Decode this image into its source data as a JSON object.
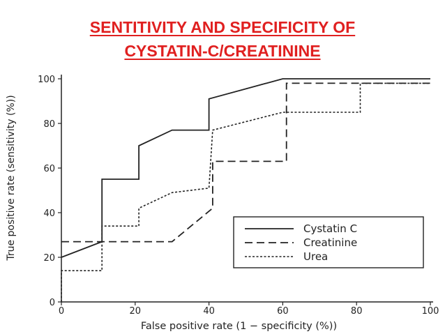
{
  "slide": {
    "title_line1": "SENTITIVITY AND SPECIFICITY OF",
    "title_line2": "CYSTATIN-C/CREATININE"
  },
  "chart_data": {
    "type": "line",
    "xlabel": "False positive rate (1 − specificity (%))",
    "ylabel": "True positive rate (sensitivity (%))",
    "xlim": [
      0,
      100
    ],
    "ylim": [
      0,
      100
    ],
    "xticks": [
      0,
      20,
      40,
      60,
      80,
      100
    ],
    "yticks": [
      0,
      20,
      40,
      60,
      80,
      100
    ],
    "grid": false,
    "legend_position": "bottom-right",
    "line_color": "#222222",
    "series": [
      {
        "name": "Cystatin C",
        "style": "solid",
        "points": [
          [
            0,
            20
          ],
          [
            11,
            27
          ],
          [
            11,
            55
          ],
          [
            21,
            55
          ],
          [
            21,
            70
          ],
          [
            30,
            77
          ],
          [
            40,
            77
          ],
          [
            40,
            91
          ],
          [
            60,
            100
          ],
          [
            100,
            100
          ]
        ]
      },
      {
        "name": "Creatinine",
        "style": "dashed",
        "points": [
          [
            0,
            27
          ],
          [
            30,
            27
          ],
          [
            41,
            42
          ],
          [
            41,
            63
          ],
          [
            61,
            63
          ],
          [
            61,
            98
          ],
          [
            100,
            98
          ]
        ]
      },
      {
        "name": "Urea",
        "style": "dotted",
        "points": [
          [
            0,
            0
          ],
          [
            0,
            14
          ],
          [
            11,
            14
          ],
          [
            11,
            34
          ],
          [
            21,
            34
          ],
          [
            21,
            42
          ],
          [
            30,
            49
          ],
          [
            40,
            51
          ],
          [
            41,
            77
          ],
          [
            60,
            85
          ],
          [
            81,
            85
          ],
          [
            81,
            98
          ],
          [
            100,
            98
          ]
        ]
      }
    ]
  }
}
